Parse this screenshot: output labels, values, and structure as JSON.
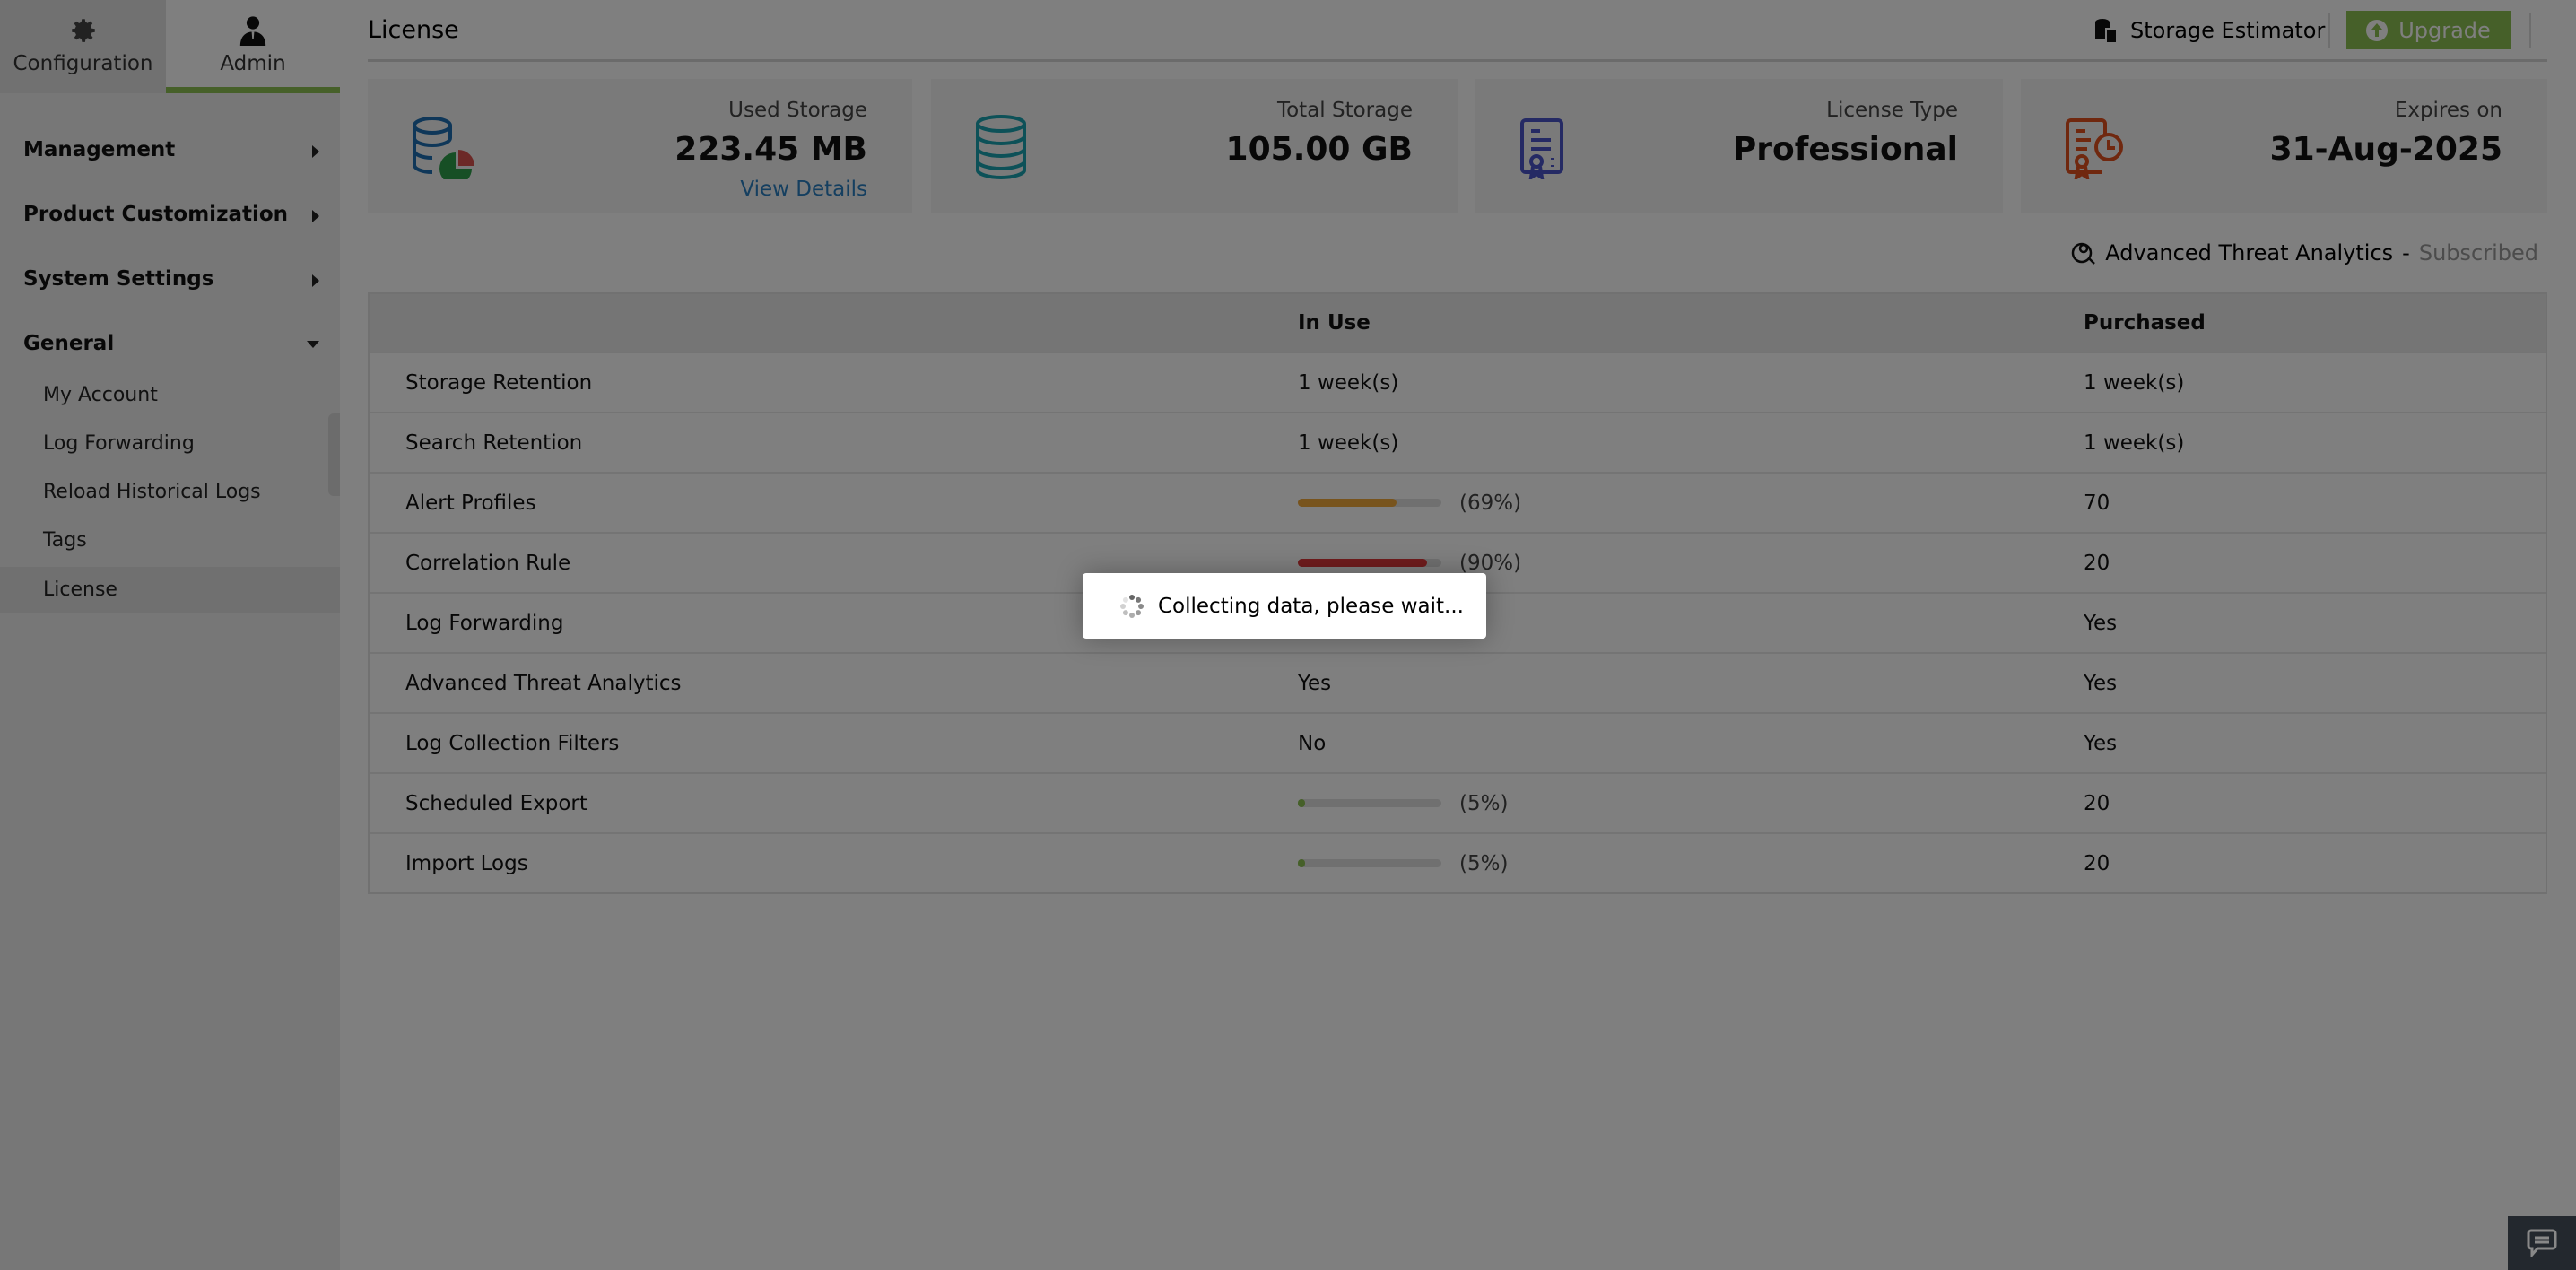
{
  "sidebar": {
    "tabs": [
      {
        "label": "Configuration",
        "icon": "gear-icon"
      },
      {
        "label": "Admin",
        "icon": "user-icon",
        "active": true
      }
    ],
    "sections": [
      {
        "label": "Management",
        "expanded": false
      },
      {
        "label": "Product Customization",
        "expanded": false
      },
      {
        "label": "System Settings",
        "expanded": false
      },
      {
        "label": "General",
        "expanded": true
      }
    ],
    "items": [
      {
        "label": "My Account"
      },
      {
        "label": "Log Forwarding"
      },
      {
        "label": "Reload Historical Logs"
      },
      {
        "label": "Tags"
      },
      {
        "label": "License",
        "active": true
      }
    ]
  },
  "header": {
    "title": "License",
    "storage_estimator": "Storage Estimator",
    "upgrade": "Upgrade"
  },
  "cards": [
    {
      "label": "Used Storage",
      "value": "223.45 MB",
      "link": "View Details",
      "icon": "database-pie-icon"
    },
    {
      "label": "Total Storage",
      "value": "105.00 GB",
      "icon": "database-icon"
    },
    {
      "label": "License Type",
      "value": "Professional",
      "icon": "certificate-icon"
    },
    {
      "label": "Expires on",
      "value": "31-Aug-2025",
      "icon": "certificate-clock-icon"
    }
  ],
  "ata": {
    "label": "Advanced Threat Analytics",
    "sep": "-",
    "status": "Subscribed"
  },
  "table": {
    "headers": [
      "",
      "In Use",
      "Purchased"
    ],
    "rows": [
      {
        "name": "Storage Retention",
        "in_use": "1 week(s)",
        "purchased": "1 week(s)"
      },
      {
        "name": "Search Retention",
        "in_use": "1 week(s)",
        "purchased": "1 week(s)"
      },
      {
        "name": "Alert Profiles",
        "progress": 69,
        "pct": "(69%)",
        "color": "#f0a93a",
        "purchased": "70"
      },
      {
        "name": "Correlation Rule",
        "progress": 90,
        "pct": "(90%)",
        "color": "#e0393b",
        "purchased": "20"
      },
      {
        "name": "Log Forwarding",
        "in_use": "",
        "purchased": "Yes"
      },
      {
        "name": "Advanced Threat Analytics",
        "in_use": "Yes",
        "purchased": "Yes"
      },
      {
        "name": "Log Collection Filters",
        "in_use": "No",
        "purchased": "Yes"
      },
      {
        "name": "Scheduled Export",
        "progress": 5,
        "pct": "(5%)",
        "color": "#8cc152",
        "purchased": "20"
      },
      {
        "name": "Import Logs",
        "progress": 5,
        "pct": "(5%)",
        "color": "#8cc152",
        "purchased": "20"
      }
    ]
  },
  "popup": {
    "message": "Collecting data, please wait..."
  },
  "colors": {
    "accent": "#8cc152",
    "link": "#2a7fc0"
  }
}
